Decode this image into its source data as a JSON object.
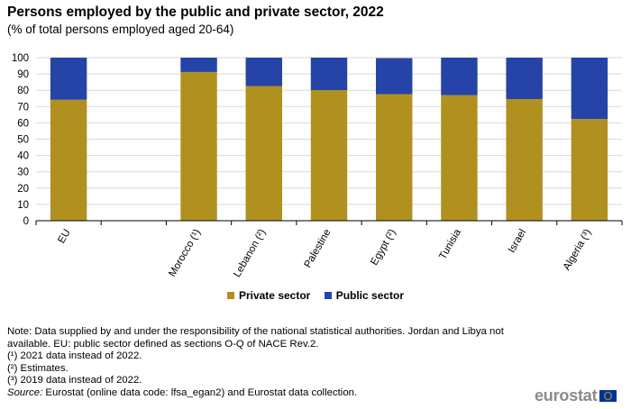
{
  "title": "Persons employed by the public and private sector, 2022",
  "subtitle": "(% of total persons employed aged 20-64)",
  "legend": {
    "private_label": "Private sector",
    "public_label": "Public sector"
  },
  "colors": {
    "private": "#b09120",
    "public": "#2644a7",
    "grid": "#d9d9d9",
    "axis": "#000000"
  },
  "notes": {
    "note1": "Note: Data supplied by and under the responsibility of the national statistical authorities. Jordan and Libya not available. EU: public sector defined as sections O-Q of NACE Rev.2.",
    "fn1": "(¹) 2021 data instead of 2022.",
    "fn2": "(²) Estimates.",
    "fn3": "(³) 2019 data instead of 2022.",
    "source_label": "Source:",
    "source_text": " Eurostat (online data code: lfsa_egan2) and Eurostat data collection."
  },
  "logo": {
    "text": "eurostat"
  },
  "chart_data": {
    "type": "bar",
    "stacked": true,
    "categories": [
      "EU",
      "",
      "Morocco (¹)",
      "Lebanon (²)",
      "Palestine",
      "Egypt (²)",
      "Tunisia",
      "Israel",
      "Algeria (³)"
    ],
    "series": [
      {
        "name": "Private sector",
        "values": [
          74.2,
          null,
          91.2,
          82.6,
          80.1,
          77.6,
          77.0,
          74.6,
          62.4
        ]
      },
      {
        "name": "Public sector",
        "values": [
          25.8,
          null,
          8.8,
          17.4,
          19.9,
          22.1,
          23.0,
          25.4,
          37.6
        ]
      }
    ],
    "ylim": [
      0,
      100
    ],
    "yticks": [
      0,
      10,
      20,
      30,
      40,
      50,
      60,
      70,
      80,
      90,
      100
    ],
    "grid": true,
    "legend_position": "bottom"
  }
}
